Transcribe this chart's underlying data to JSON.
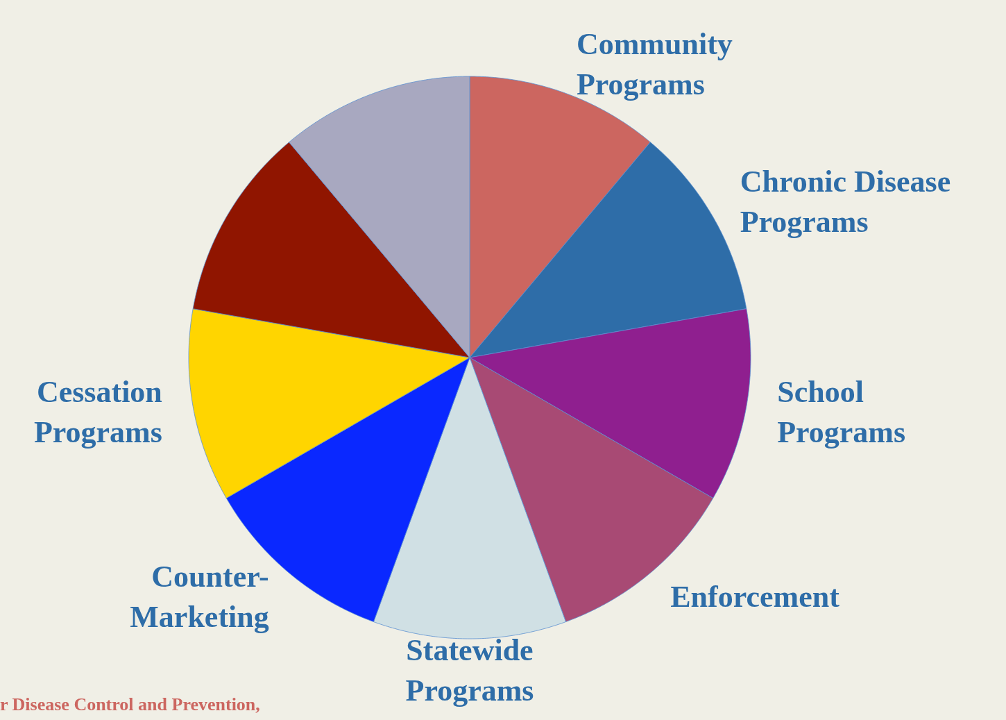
{
  "chart_data": {
    "type": "pie",
    "categories": [
      "Community\nPrograms",
      "Chronic Disease\nPrograms",
      "School\nPrograms",
      "Enforcement",
      "Statewide\nPrograms",
      "Counter-\nMarketing",
      "Cessation\nPrograms",
      null,
      null
    ],
    "values": [
      11.11,
      11.11,
      11.11,
      11.11,
      11.11,
      11.11,
      11.11,
      11.11,
      11.11
    ],
    "colors": [
      "#cc6660",
      "#2e6da8",
      "#8f1f8f",
      "#a84a74",
      "#d0e0e4",
      "#0a28ff",
      "#ffd500",
      "#901500",
      "#a8a8c0"
    ],
    "annotations": [
      "r Disease Control and Prevention,"
    ]
  }
}
